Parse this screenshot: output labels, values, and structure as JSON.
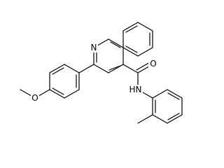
{
  "atoms": {
    "quinoline_n": "N",
    "methoxy_o": "O",
    "carbonyl_o": "O",
    "amide_n": "N",
    "amide_h": "H"
  }
}
